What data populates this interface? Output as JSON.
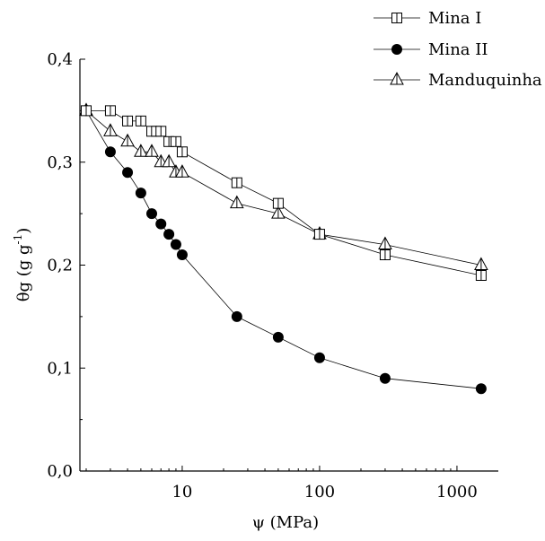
{
  "chart_data": {
    "type": "scatter",
    "x_scale": "log",
    "xlim": [
      1.8,
      2000
    ],
    "ylim": [
      0,
      0.4
    ],
    "xlabel": "ψ (MPa)",
    "ylabel": {
      "main": "θg (g g",
      "sup": "-1",
      "close": ")"
    },
    "x_ticks": [
      {
        "value": 10,
        "label": "10"
      },
      {
        "value": 100,
        "label": "100"
      },
      {
        "value": 1000,
        "label": "1000"
      }
    ],
    "y_ticks": [
      {
        "value": 0,
        "label": "0,0"
      },
      {
        "value": 0.1,
        "label": "0,1"
      },
      {
        "value": 0.2,
        "label": "0,2"
      },
      {
        "value": 0.3,
        "label": "0,3"
      },
      {
        "value": 0.4,
        "label": "0,4"
      }
    ],
    "legend_position": "top-right",
    "grid": false,
    "series": [
      {
        "name": "Mina I",
        "marker": "square",
        "x": [
          2,
          3,
          4,
          5,
          6,
          6.5,
          7,
          8,
          9,
          10,
          25,
          50,
          100,
          300,
          1500
        ],
        "y": [
          0.35,
          0.35,
          0.34,
          0.34,
          0.33,
          0.33,
          0.33,
          0.32,
          0.32,
          0.31,
          0.28,
          0.26,
          0.23,
          0.21,
          0.19
        ]
      },
      {
        "name": "Mina II",
        "marker": "filled-circle",
        "x": [
          2,
          3,
          4,
          5,
          6,
          7,
          8,
          9,
          10,
          25,
          50,
          100,
          300,
          1500
        ],
        "y": [
          0.35,
          0.31,
          0.29,
          0.27,
          0.25,
          0.24,
          0.23,
          0.22,
          0.21,
          0.15,
          0.13,
          0.11,
          0.09,
          0.08
        ]
      },
      {
        "name": "Manduquinha",
        "marker": "triangle",
        "x": [
          2,
          3,
          4,
          5,
          6,
          7,
          8,
          9,
          10,
          25,
          50,
          100,
          300,
          1500
        ],
        "y": [
          0.35,
          0.33,
          0.32,
          0.31,
          0.31,
          0.3,
          0.3,
          0.29,
          0.29,
          0.26,
          0.25,
          0.23,
          0.22,
          0.2
        ]
      }
    ]
  }
}
